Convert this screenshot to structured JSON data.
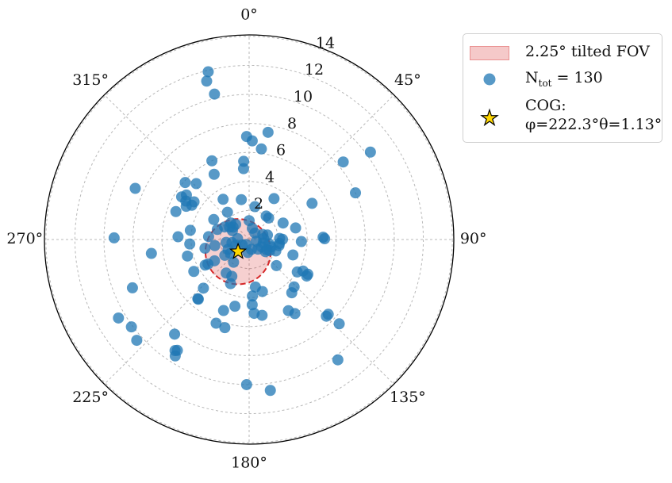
{
  "chart_data": {
    "type": "scatter",
    "projection": "polar",
    "theta_direction": "clockwise",
    "theta_zero": "top",
    "angle_ticks": [
      {
        "deg": 0,
        "label": "0°"
      },
      {
        "deg": 45,
        "label": "45°"
      },
      {
        "deg": 90,
        "label": "90°"
      },
      {
        "deg": 135,
        "label": "135°"
      },
      {
        "deg": 180,
        "label": "180°"
      },
      {
        "deg": 225,
        "label": "225°"
      },
      {
        "deg": 270,
        "label": "270°"
      },
      {
        "deg": 315,
        "label": "315°"
      }
    ],
    "radial_ticks": [
      2,
      4,
      6,
      8,
      10,
      12,
      14
    ],
    "rlim": [
      0,
      14.1
    ],
    "grid": true,
    "legend_placement": "outside upper-right",
    "fov": {
      "label": "2.25° tilted FOV",
      "radius": 2.25,
      "center_phi": 222.3,
      "center_theta": 1.13,
      "color": "#d62728"
    },
    "cog": {
      "label_line1": "COG:",
      "label_line2": "φ=222.3°θ=1.13°",
      "phi": 222.3,
      "theta": 1.13,
      "color": "#ffd700"
    },
    "series": [
      {
        "name": "N",
        "name_sub": "tot",
        "name_suffix": " = 130",
        "color": "#1f77b4",
        "points": [
          [
            11.9,
            346.3
          ],
          [
            11.3,
            345.0
          ],
          [
            10.3,
            346.6
          ],
          [
            7.1,
            358.6
          ],
          [
            6.8,
            1.8
          ],
          [
            5.4,
            356.0
          ],
          [
            4.9,
            355.5
          ],
          [
            7.5,
            10.0
          ],
          [
            6.3,
            7.7
          ],
          [
            2.8,
            348.9
          ],
          [
            2.3,
            10.0
          ],
          [
            2.0,
            36.0
          ],
          [
            3.3,
            31.3
          ],
          [
            2.0,
            42.2
          ],
          [
            8.4,
            50.5
          ],
          [
            10.3,
            54.2
          ],
          [
            5.0,
            60.1
          ],
          [
            8.0,
            66.3
          ],
          [
            2.6,
            64.1
          ],
          [
            2.3,
            89.7
          ],
          [
            3.3,
            76.0
          ],
          [
            1.3,
            76.1
          ],
          [
            1.0,
            69.8
          ],
          [
            2.1,
            88.0
          ],
          [
            3.6,
            92.2
          ],
          [
            5.2,
            89.4
          ],
          [
            5.1,
            88.2
          ],
          [
            1.6,
            108.5
          ],
          [
            1.4,
            102.1
          ],
          [
            1.0,
            103.7
          ],
          [
            2.1,
            97.5
          ],
          [
            2.1,
            101.6
          ],
          [
            3.2,
            109.4
          ],
          [
            2.0,
            113.2
          ],
          [
            4.3,
            120.3
          ],
          [
            4.0,
            124.0
          ],
          [
            4.7,
            120.6
          ],
          [
            4.7,
            122.4
          ],
          [
            1.4,
            126.8
          ],
          [
            1.0,
            120.7
          ],
          [
            1.6,
            118.5
          ],
          [
            2.6,
            133.7
          ],
          [
            4.5,
            136.5
          ],
          [
            4.7,
            141.3
          ],
          [
            5.6,
            151.1
          ],
          [
            6.0,
            148.3
          ],
          [
            7.5,
            134.8
          ],
          [
            7.5,
            133.4
          ],
          [
            8.5,
            133.1
          ],
          [
            10.3,
            143.6
          ],
          [
            0.9,
            137.6
          ],
          [
            3.9,
            176.7
          ],
          [
            4.5,
            177.3
          ],
          [
            3.3,
            172.5
          ],
          [
            3.7,
            165.7
          ],
          [
            5.1,
            176.1
          ],
          [
            5.3,
            170.3
          ],
          [
            10.0,
            181.0
          ],
          [
            10.5,
            172.0
          ],
          [
            4.7,
            192.0
          ],
          [
            5.2,
            199.8
          ],
          [
            6.2,
            201.5
          ],
          [
            6.3,
            195.4
          ],
          [
            8.3,
            218.2
          ],
          [
            9.1,
            212.9
          ],
          [
            9.2,
            213.7
          ],
          [
            9.5,
            212.4
          ],
          [
            8.7,
            247.5
          ],
          [
            10.1,
            233.4
          ],
          [
            10.4,
            228.1
          ],
          [
            10.5,
            239.0
          ],
          [
            4.4,
            240.0
          ],
          [
            3.5,
            239.8
          ],
          [
            3.3,
            239.2
          ],
          [
            2.8,
            238.4
          ],
          [
            5.4,
            220.9
          ],
          [
            5.4,
            220.4
          ],
          [
            4.6,
            223.2
          ],
          [
            3.3,
            202.8
          ],
          [
            2.8,
            205.2
          ],
          [
            2.8,
            214.4
          ],
          [
            1.9,
            214.4
          ],
          [
            1.6,
            233.5
          ],
          [
            1.6,
            245.0
          ],
          [
            2.0,
            237.0
          ],
          [
            1.6,
            262.9
          ],
          [
            2.4,
            260.0
          ],
          [
            3.1,
            258.8
          ],
          [
            4.1,
            265.7
          ],
          [
            4.4,
            255.0
          ],
          [
            6.8,
            261.9
          ],
          [
            9.3,
            270.7
          ],
          [
            4.9,
            272.2
          ],
          [
            4.1,
            278.9
          ],
          [
            2.8,
            274.1
          ],
          [
            2.3,
            287.6
          ],
          [
            2.8,
            299.5
          ],
          [
            1.9,
            297.0
          ],
          [
            1.6,
            302.5
          ],
          [
            1.3,
            297.7
          ],
          [
            1.4,
            318.5
          ],
          [
            1.4,
            307.7
          ],
          [
            4.6,
            300.9
          ],
          [
            4.9,
            297.8
          ],
          [
            5.4,
            290.9
          ],
          [
            5.5,
            302.3
          ],
          [
            5.1,
            301.3
          ],
          [
            4.6,
            304.4
          ],
          [
            5.3,
            305.4
          ],
          [
            5.9,
            311.7
          ],
          [
            5.3,
            316.6
          ],
          [
            8.6,
            294.2
          ],
          [
            5.1,
            331.8
          ],
          [
            6.0,
            334.7
          ],
          [
            3.3,
            327.1
          ],
          [
            2.4,
            321.6
          ],
          [
            1.7,
            312.1
          ],
          [
            1.2,
            259.8
          ],
          [
            1.0,
            247.0
          ],
          [
            0.8,
            274.5
          ],
          [
            0.6,
            232.2
          ],
          [
            0.4,
            210.8
          ],
          [
            0.7,
            167.0
          ],
          [
            0.9,
            185.7
          ],
          [
            0.5,
            103.0
          ],
          [
            0.6,
            42.1
          ],
          [
            1.0,
            85.9
          ],
          [
            1.4,
            120.2
          ],
          [
            0.8,
            15.9
          ],
          [
            1.3,
            0.0
          ]
        ]
      }
    ]
  }
}
